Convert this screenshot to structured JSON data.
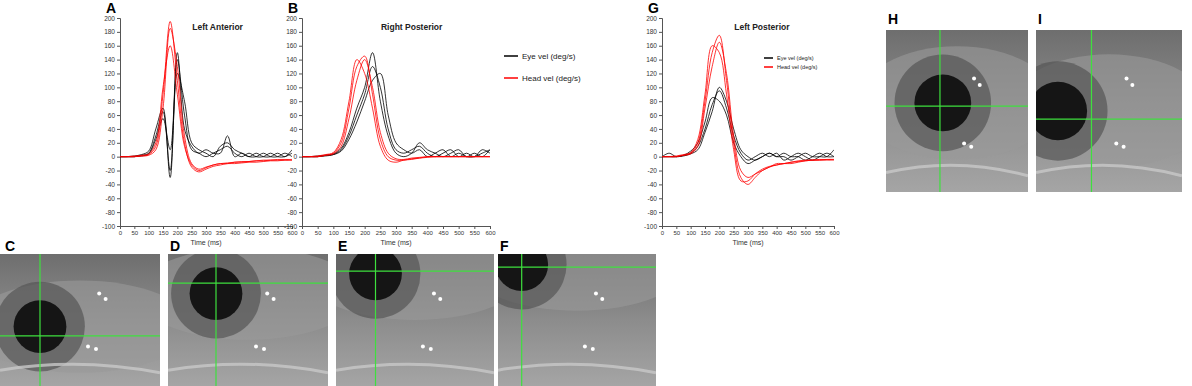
{
  "chart_data": [
    {
      "type": "line",
      "panel_label": "A",
      "title": "Left Anterior",
      "x_label": "Time (ms)",
      "x": [
        0,
        25,
        50,
        75,
        100,
        125,
        150,
        175,
        200,
        225,
        250,
        275,
        300,
        325,
        350,
        375,
        400,
        425,
        450,
        475,
        500,
        525,
        550,
        575,
        600
      ],
      "xlim": [
        0,
        600
      ],
      "xticks": [
        0,
        50,
        100,
        150,
        200,
        250,
        300,
        350,
        400,
        450,
        500,
        550,
        600
      ],
      "ylim": [
        -100,
        200
      ],
      "yticks": [
        -100,
        -80,
        -60,
        -40,
        -20,
        0,
        20,
        40,
        60,
        80,
        100,
        120,
        140,
        160,
        180,
        200
      ],
      "series": [
        {
          "name": "Eye vel (deg/s)",
          "color": "#000000",
          "values": [
            0,
            0,
            0,
            2,
            5,
            30,
            65,
            -20,
            140,
            60,
            10,
            5,
            0,
            5,
            10,
            15,
            5,
            0,
            5,
            0,
            0,
            5,
            0,
            0,
            5
          ]
        },
        {
          "name": "Eye vel (deg/s)",
          "color": "#000000",
          "values": [
            0,
            0,
            1,
            3,
            8,
            40,
            70,
            -30,
            120,
            80,
            20,
            10,
            5,
            0,
            15,
            20,
            10,
            5,
            0,
            5,
            0,
            0,
            5,
            0,
            10
          ]
        },
        {
          "name": "Eye vel (deg/s)",
          "color": "#000000",
          "values": [
            0,
            0,
            0,
            1,
            4,
            25,
            55,
            10,
            150,
            40,
            15,
            5,
            10,
            5,
            5,
            30,
            0,
            5,
            0,
            0,
            5,
            0,
            0,
            5,
            0
          ]
        },
        {
          "name": "Head vel (deg/s)",
          "color": "#ff0000",
          "values": [
            0,
            0,
            0,
            1,
            2,
            10,
            70,
            185,
            130,
            30,
            -10,
            -18,
            -15,
            -12,
            -10,
            -10,
            -8,
            -8,
            -7,
            -6,
            -6,
            -5,
            -5,
            -5,
            -5
          ]
        },
        {
          "name": "Head vel (deg/s)",
          "color": "#ff0000",
          "values": [
            0,
            0,
            1,
            1,
            3,
            15,
            90,
            195,
            110,
            20,
            -15,
            -22,
            -18,
            -14,
            -12,
            -10,
            -10,
            -9,
            -8,
            -8,
            -7,
            -6,
            -6,
            -5,
            -5
          ]
        },
        {
          "name": "Head vel (deg/s)",
          "color": "#ff0000",
          "values": [
            0,
            0,
            0,
            2,
            4,
            20,
            100,
            160,
            90,
            15,
            -12,
            -20,
            -16,
            -12,
            -10,
            -9,
            -8,
            -7,
            -7,
            -6,
            -5,
            -5,
            -4,
            -4,
            -4
          ]
        }
      ]
    },
    {
      "type": "line",
      "panel_label": "B",
      "title": "Right Posterior",
      "x_label": "Time (ms)",
      "legend": "right",
      "x": [
        0,
        25,
        50,
        75,
        100,
        125,
        150,
        175,
        200,
        225,
        250,
        275,
        300,
        325,
        350,
        375,
        400,
        425,
        450,
        475,
        500,
        525,
        550,
        575,
        600
      ],
      "xlim": [
        0,
        600
      ],
      "xticks": [
        0,
        50,
        100,
        150,
        200,
        250,
        300,
        350,
        400,
        450,
        500,
        550,
        600
      ],
      "ylim": [
        -100,
        200
      ],
      "yticks": [
        -100,
        -80,
        -60,
        -40,
        -20,
        0,
        20,
        40,
        60,
        80,
        100,
        120,
        140,
        160,
        180,
        200
      ],
      "series": [
        {
          "name": "Eye vel (deg/s)",
          "color": "#000000",
          "values": [
            0,
            0,
            0,
            1,
            3,
            10,
            30,
            60,
            90,
            130,
            100,
            40,
            10,
            5,
            10,
            15,
            5,
            0,
            5,
            10,
            0,
            5,
            0,
            10,
            5
          ]
        },
        {
          "name": "Eye vel (deg/s)",
          "color": "#000000",
          "values": [
            0,
            0,
            0,
            2,
            4,
            12,
            35,
            70,
            100,
            150,
            80,
            30,
            5,
            0,
            5,
            20,
            10,
            5,
            0,
            5,
            10,
            0,
            5,
            0,
            10
          ]
        },
        {
          "name": "Eye vel (deg/s)",
          "color": "#000000",
          "values": [
            0,
            0,
            1,
            2,
            3,
            8,
            25,
            50,
            80,
            110,
            120,
            60,
            20,
            10,
            5,
            10,
            0,
            5,
            10,
            0,
            5,
            0,
            0,
            5,
            10
          ]
        },
        {
          "name": "Head vel (deg/s)",
          "color": "#ff0000",
          "values": [
            0,
            0,
            0,
            2,
            5,
            20,
            70,
            130,
            145,
            90,
            25,
            0,
            -5,
            -5,
            -3,
            -2,
            0,
            0,
            0,
            0,
            0,
            0,
            0,
            0,
            0
          ]
        },
        {
          "name": "Head vel (deg/s)",
          "color": "#ff0000",
          "values": [
            0,
            0,
            1,
            3,
            6,
            25,
            80,
            140,
            120,
            70,
            15,
            -5,
            -8,
            -5,
            -4,
            -2,
            -1,
            0,
            0,
            0,
            0,
            0,
            0,
            0,
            0
          ]
        },
        {
          "name": "Head vel (deg/s)",
          "color": "#ff0000",
          "values": [
            0,
            0,
            0,
            2,
            4,
            15,
            55,
            110,
            140,
            100,
            35,
            5,
            -3,
            -4,
            -2,
            -1,
            0,
            0,
            0,
            0,
            0,
            0,
            0,
            0,
            0
          ]
        }
      ]
    },
    {
      "type": "line",
      "panel_label": "G",
      "title": "Left Posterior",
      "x_label": "Time (ms)",
      "legend": "top-right",
      "x": [
        0,
        25,
        50,
        75,
        100,
        125,
        150,
        175,
        200,
        225,
        250,
        275,
        300,
        325,
        350,
        375,
        400,
        425,
        450,
        475,
        500,
        525,
        550,
        575,
        600
      ],
      "xlim": [
        0,
        600
      ],
      "xticks": [
        0,
        50,
        100,
        150,
        200,
        250,
        300,
        350,
        400,
        450,
        500,
        550,
        600
      ],
      "ylim": [
        -100,
        200
      ],
      "yticks": [
        -100,
        -80,
        -60,
        -40,
        -20,
        0,
        20,
        40,
        60,
        80,
        100,
        120,
        140,
        160,
        180,
        200
      ],
      "series": [
        {
          "name": "Eye vel (deg/s)",
          "color": "#000000",
          "values": [
            0,
            0,
            0,
            2,
            5,
            15,
            40,
            75,
            95,
            70,
            30,
            5,
            -5,
            0,
            5,
            0,
            5,
            -5,
            0,
            5,
            0,
            -5,
            0,
            5,
            0
          ]
        },
        {
          "name": "Eye vel (deg/s)",
          "color": "#000000",
          "values": [
            0,
            5,
            0,
            2,
            8,
            20,
            50,
            85,
            80,
            60,
            20,
            0,
            -10,
            -5,
            0,
            5,
            0,
            0,
            -5,
            0,
            5,
            0,
            0,
            0,
            10
          ]
        },
        {
          "name": "Eye vel (deg/s)",
          "color": "#000000",
          "values": [
            0,
            0,
            0,
            1,
            4,
            10,
            35,
            65,
            100,
            80,
            40,
            10,
            0,
            -5,
            0,
            5,
            0,
            5,
            0,
            0,
            -5,
            0,
            5,
            0,
            0
          ]
        },
        {
          "name": "Head vel (deg/s)",
          "color": "#ff0000",
          "values": [
            0,
            0,
            0,
            2,
            5,
            20,
            80,
            150,
            175,
            110,
            20,
            -30,
            -40,
            -30,
            -20,
            -15,
            -12,
            -10,
            -10,
            -8,
            -6,
            -5,
            -5,
            -5,
            -5
          ]
        },
        {
          "name": "Head vel (deg/s)",
          "color": "#ff0000",
          "values": [
            0,
            0,
            1,
            3,
            6,
            25,
            90,
            160,
            150,
            90,
            10,
            -35,
            -35,
            -25,
            -18,
            -14,
            -12,
            -10,
            -8,
            -7,
            -6,
            -5,
            -5,
            -4,
            -4
          ]
        },
        {
          "name": "Head vel (deg/s)",
          "color": "#ff0000",
          "values": [
            0,
            0,
            0,
            2,
            4,
            15,
            70,
            130,
            165,
            120,
            30,
            -20,
            -30,
            -25,
            -20,
            -15,
            -10,
            -10,
            -8,
            -6,
            -5,
            -5,
            -4,
            -4,
            -4
          ]
        }
      ]
    }
  ],
  "photos": [
    {
      "label": "C"
    },
    {
      "label": "D"
    },
    {
      "label": "E"
    },
    {
      "label": "F"
    },
    {
      "label": "H"
    },
    {
      "label": "I"
    }
  ]
}
